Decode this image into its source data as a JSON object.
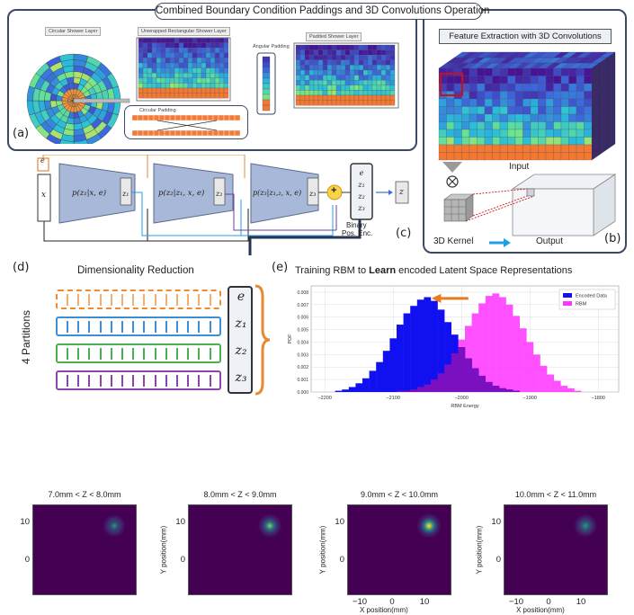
{
  "top_title": "Combined Boundary Condition Paddings and 3D Convolutions Operation",
  "panel_a": {
    "letter": "(a)",
    "labels": {
      "circular": "Circular Shower Layer",
      "unwrapped": "Unwrapped Rectangular Shower Layer",
      "angular": "Angular Padding",
      "padded": "Padded Shower Layer",
      "circular_padding": "Circular Padding"
    }
  },
  "panel_b": {
    "letter": "(b)",
    "title_prefix": "Feature Extraction ",
    "title_em": "with",
    "title_suffix": " 3D Convolutions",
    "input_label": "Input",
    "kernel_label": "3D Kernel",
    "output_label": "Output"
  },
  "panel_c": {
    "letter": "(c)",
    "x_label": "x",
    "e_label": "e",
    "enc1": "p(z₁|x, e)",
    "enc2": "p(z₂|z₁, x, e)",
    "enc3": "p(z₃|z₁,₂, x, e)",
    "z1": "z₁",
    "z2": "z₂",
    "z3": "z₃",
    "plus": "+",
    "out_z": "z",
    "stack": [
      "e",
      "z₁",
      "z₂",
      "z₃"
    ],
    "binary_label_1": "Binary",
    "binary_label_2": "Pos. Enc."
  },
  "panel_d": {
    "letter": "(d)",
    "title": "Dimensionality Reduction",
    "side_label": "4 Partitions",
    "partitions": [
      {
        "label": "e",
        "color": "#f28a30"
      },
      {
        "label": "z₁",
        "color": "#3b8fd6"
      },
      {
        "label": "z₂",
        "color": "#4caf50"
      },
      {
        "label": "z₃",
        "color": "#8e44ad"
      }
    ]
  },
  "panel_e": {
    "letter": "(e)",
    "title_prefix": "Training RBM to ",
    "title_bold": "Learn",
    "title_suffix": " encoded Latent Space Representations",
    "chart_data": {
      "type": "bar",
      "xlabel": "RBM Energy",
      "ylabel": "PDF",
      "xlim": [
        -2220,
        -1770
      ],
      "ylim": [
        0,
        0.0085
      ],
      "x_ticks": [
        "−2200",
        "−2100",
        "−2000",
        "−1900",
        "−1800"
      ],
      "y_ticks": [
        "0.000",
        "0.001",
        "0.002",
        "0.003",
        "0.004",
        "0.005",
        "0.006",
        "0.007",
        "0.008"
      ],
      "bin_width": 10,
      "series": [
        {
          "name": "Encoded Data",
          "color": "#1010f0",
          "x": [
            -2180,
            -2170,
            -2160,
            -2150,
            -2140,
            -2130,
            -2120,
            -2110,
            -2100,
            -2090,
            -2080,
            -2070,
            -2060,
            -2050,
            -2040,
            -2030,
            -2020,
            -2010,
            -2000,
            -1990,
            -1980,
            -1970,
            -1960,
            -1950,
            -1940,
            -1930,
            -1920
          ],
          "values": [
            0.0001,
            0.0002,
            0.0004,
            0.0007,
            0.0011,
            0.0017,
            0.0024,
            0.0033,
            0.0043,
            0.0054,
            0.0063,
            0.0069,
            0.0074,
            0.0076,
            0.0073,
            0.0066,
            0.0056,
            0.0046,
            0.0036,
            0.0027,
            0.0019,
            0.0013,
            0.0008,
            0.0005,
            0.0003,
            0.0002,
            0.0001
          ]
        },
        {
          "name": "RBM",
          "color": "#ff33ff",
          "x": [
            -2090,
            -2080,
            -2070,
            -2060,
            -2050,
            -2040,
            -2030,
            -2020,
            -2010,
            -2000,
            -1990,
            -1980,
            -1970,
            -1960,
            -1950,
            -1940,
            -1930,
            -1920,
            -1910,
            -1900,
            -1890,
            -1880,
            -1870,
            -1860,
            -1850,
            -1840,
            -1830
          ],
          "values": [
            0.0001,
            0.0001,
            0.0002,
            0.0004,
            0.0006,
            0.001,
            0.0015,
            0.0022,
            0.0031,
            0.0042,
            0.0053,
            0.0063,
            0.0071,
            0.0077,
            0.0079,
            0.0076,
            0.007,
            0.0061,
            0.0051,
            0.004,
            0.003,
            0.0021,
            0.0014,
            0.0009,
            0.0005,
            0.0003,
            0.0001
          ]
        }
      ]
    }
  },
  "heatmaps": {
    "y_label": "Y position(mm)",
    "x_label": "X position(mm)",
    "y_tick_10": "10",
    "y_tick_0": "0",
    "x_ticks": [
      "−10",
      "0",
      "10"
    ],
    "plots": [
      {
        "title": "7.0mm < Z < 8.0mm",
        "intensity": 0.35
      },
      {
        "title": "8.0mm < Z < 9.0mm",
        "intensity": 0.7
      },
      {
        "title": "9.0mm < Z < 10.0mm",
        "intensity": 1.0
      },
      {
        "title": "10.0mm < Z < 11.0mm",
        "intensity": 0.5
      }
    ]
  }
}
